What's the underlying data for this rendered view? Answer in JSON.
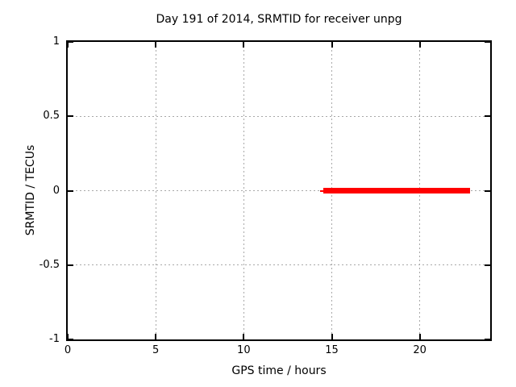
{
  "chart_data": {
    "type": "line",
    "title": "Day 191 of 2014, SRMTID for receiver unpg",
    "xlabel": "GPS time / hours",
    "ylabel": "SRMTID / TECUs",
    "xlim": [
      0,
      24
    ],
    "ylim": [
      -1,
      1
    ],
    "xticks": {
      "values": [
        0,
        5,
        10,
        15,
        20
      ],
      "labels": [
        "0",
        "5",
        "10",
        "15",
        "20"
      ]
    },
    "yticks": {
      "values": [
        -1,
        -0.5,
        0,
        0.5,
        1
      ],
      "labels": [
        "-1",
        "-0.5",
        "0",
        "0.5",
        "1"
      ]
    },
    "grid": true,
    "grid_color": "#a8a8a8",
    "axis_color": "#000000",
    "background_color": "#ffffff",
    "legend": "none",
    "series": [
      {
        "name": "SRMTID",
        "color": "#ff0000",
        "segments": [
          {
            "x1": 14.33,
            "x2": 14.55,
            "y": 0,
            "thickness_px": 2
          },
          {
            "x1": 14.5,
            "x2": 22.85,
            "y": 0,
            "thickness_px": 7
          }
        ]
      }
    ]
  }
}
